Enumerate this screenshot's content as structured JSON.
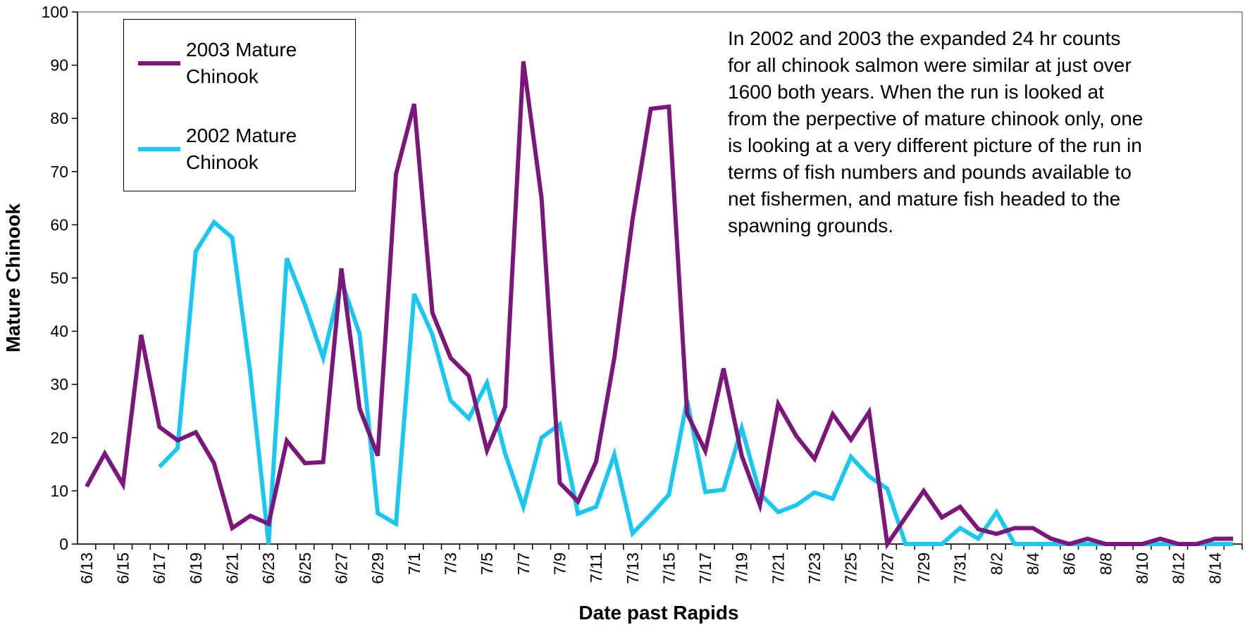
{
  "chart_data": {
    "type": "line",
    "xlabel": "Date past Rapids",
    "ylabel": "Mature Chinook",
    "categories": [
      "6/13",
      null,
      "6/15",
      null,
      "6/17",
      null,
      "6/19",
      null,
      "6/21",
      null,
      "6/23",
      null,
      "6/25",
      null,
      "6/27",
      null,
      "6/29",
      null,
      "7/1",
      null,
      "7/3",
      null,
      "7/5",
      null,
      "7/7",
      null,
      "7/9",
      null,
      "7/11",
      null,
      "7/13",
      null,
      "7/15",
      null,
      "7/17",
      null,
      "7/19",
      null,
      "7/21",
      null,
      "7/23",
      null,
      "7/25",
      null,
      "7/27",
      null,
      "7/29",
      null,
      "7/31",
      null,
      "8/2",
      null,
      "8/4",
      null,
      "8/6",
      null,
      "8/8",
      null,
      "8/10",
      null,
      "8/12",
      null,
      "8/14",
      null
    ],
    "series": [
      {
        "name": "2003 Mature Chinook",
        "color": "#7b167b",
        "values": [
          10.8,
          17,
          11.2,
          39.3,
          22,
          19.5,
          21,
          15.2,
          3,
          5.3,
          3.8,
          19.4,
          15.2,
          15.4,
          51.8,
          25.5,
          16.6,
          69.5,
          82.7,
          43.5,
          35,
          31.6,
          17.6,
          25.8,
          90.7,
          65,
          11.5,
          8,
          15.5,
          35,
          61,
          81.8,
          82.2,
          24.5,
          17.5,
          33,
          16.6,
          7.3,
          26.3,
          20.3,
          16,
          24.4,
          19.6,
          24.8,
          0,
          5,
          10,
          5,
          7,
          2.8,
          1.9,
          3,
          3,
          1,
          0,
          1,
          0,
          0,
          0,
          1,
          0,
          0,
          1,
          1
        ]
      },
      {
        "name": "2002 Mature Chinook",
        "color": "#19c8f0",
        "values": [
          null,
          null,
          null,
          null,
          14.5,
          18,
          55,
          60.5,
          57.6,
          32,
          0,
          53.7,
          45,
          35,
          49.5,
          39.5,
          5.8,
          3.8,
          47,
          39.4,
          27,
          23.6,
          30.3,
          17,
          7,
          20,
          22.5,
          5.7,
          7,
          16.8,
          2,
          5.5,
          9.3,
          27,
          9.8,
          10.2,
          21.8,
          9.5,
          6,
          7.3,
          9.7,
          8.5,
          16.4,
          12.7,
          10.4,
          0,
          0,
          0,
          3,
          1,
          6,
          0,
          0,
          0,
          0,
          0,
          0,
          0,
          0,
          0,
          0,
          0,
          0,
          0
        ]
      }
    ],
    "ylim": [
      0,
      100
    ],
    "yticks": [
      0,
      10,
      20,
      30,
      40,
      50,
      60,
      70,
      80,
      90,
      100
    ],
    "legend": "upper left",
    "annotation": [
      "In 2002 and 2003 the expanded 24 hr  counts",
      "for all chinook salmon were similar at just over",
      "1600  both years. When the run is looked at",
      "from the perpective of mature chinook only, one",
      "is looking at a very different picture of the run in",
      "terms of fish numbers and pounds available to",
      "net fishermen, and mature fish headed to the",
      "spawning grounds."
    ]
  }
}
